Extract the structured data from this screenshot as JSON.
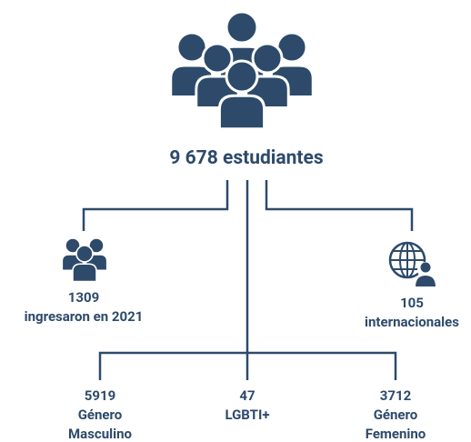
{
  "title": "9 678 estudiantes",
  "nodes": [
    {
      "value": "1309",
      "label": [
        "ingresaron en 2021"
      ]
    },
    {
      "value": "105",
      "label": [
        "internacionales"
      ]
    },
    {
      "value": "5919",
      "label": [
        "Género",
        "Masculino"
      ]
    },
    {
      "value": "47",
      "label": [
        "LGBTI+"
      ]
    },
    {
      "value": "3712",
      "label": [
        "Género",
        "Femenino"
      ]
    }
  ]
}
